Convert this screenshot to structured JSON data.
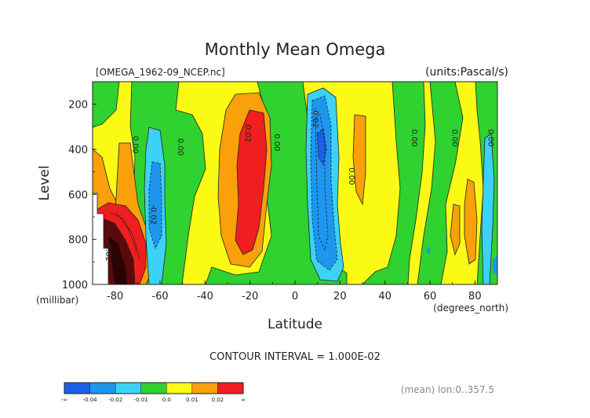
{
  "chart_data": {
    "type": "heatmap",
    "title": "Monthly Mean Omega",
    "file_label": "[OMEGA_1962-09_NCEP.nc]",
    "units_label": "(units:Pascal/s)",
    "xlabel": "Latitude",
    "x_units": "(degrees_north)",
    "ylabel": "Level",
    "y_units": "(millibar)",
    "xlim": [
      -90,
      90
    ],
    "ylim": [
      1000,
      100
    ],
    "x_ticks": [
      "-80",
      "-60",
      "-40",
      "-20",
      "0",
      "20",
      "40",
      "60",
      "80"
    ],
    "y_ticks": [
      "200",
      "400",
      "600",
      "800",
      "1000"
    ],
    "contour_interval": "CONTOUR INTERVAL = 1.000E-02",
    "footnote": "(mean) lon:0..357.5",
    "contour_labels": [
      {
        "text": "0.00",
        "lat": -72,
        "lev": 380
      },
      {
        "text": "0.00",
        "lat": -52,
        "lev": 390
      },
      {
        "text": "0.02",
        "lat": -22,
        "lev": 330
      },
      {
        "text": "0.00",
        "lat": -9,
        "lev": 370
      },
      {
        "text": "-0.02",
        "lat": 8,
        "lev": 260
      },
      {
        "text": "0.00",
        "lat": 24,
        "lev": 520
      },
      {
        "text": "0.00",
        "lat": 52,
        "lev": 350
      },
      {
        "text": "0.00",
        "lat": 70,
        "lev": 350
      },
      {
        "text": "0.00",
        "lat": 86,
        "lev": 350
      },
      {
        "text": "-0.02",
        "lat": -64,
        "lev": 690
      },
      {
        "text": "0.02",
        "lat": -84,
        "lev": 860
      }
    ],
    "legend": {
      "bins": [
        "-∞",
        "-0.04",
        "-0.02",
        "-0.01",
        "0.0",
        "0.01",
        "0.02",
        "∞"
      ],
      "colors": [
        "#1a5fe6",
        "#1e96f0",
        "#3cd2f5",
        "#2fd22f",
        "#fafa14",
        "#faa00a",
        "#f01e1e"
      ]
    },
    "colors": {
      "green": "#2fd22f",
      "yellow": "#fafa14",
      "orange": "#faa00a",
      "red": "#f01e1e",
      "cyan": "#3cd2f5",
      "lightblue": "#1e96f0",
      "blue": "#1a5fe6",
      "darkred": "#5a0a0a"
    }
  }
}
